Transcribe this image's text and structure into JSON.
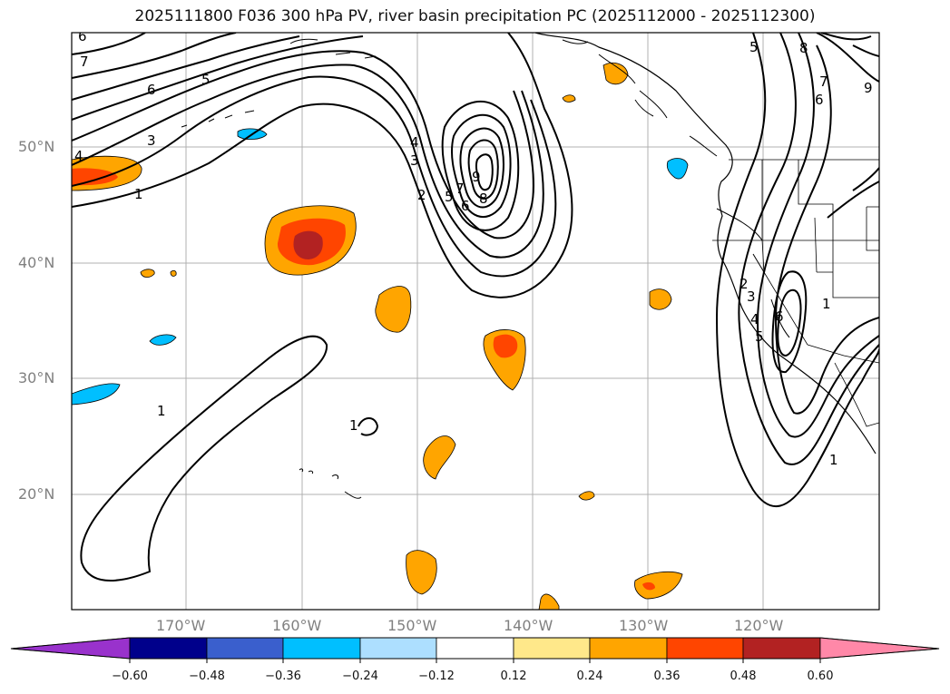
{
  "title": "2025111800 F036 300 hPa PV, river basin precipitation PC (2025112000 - 2025112300)",
  "axes": {
    "x_ticks": [
      "170°W",
      "160°W",
      "150°W",
      "140°W",
      "130°W",
      "120°W"
    ],
    "y_ticks": [
      "50°N",
      "40°N",
      "30°N",
      "20°N"
    ]
  },
  "colorbar": {
    "ticks": [
      "−0.60",
      "−0.48",
      "−0.36",
      "−0.24",
      "−0.12",
      "0.12",
      "0.24",
      "0.36",
      "0.48",
      "0.60"
    ],
    "colors": [
      "#9932CC",
      "#00008B",
      "#3A5FCD",
      "#00BFFF",
      "#ADDFFF",
      "#FFFFFF",
      "#FFE88A",
      "#FFA500",
      "#FF4500",
      "#B22222",
      "#FF88A8"
    ]
  },
  "contour_labels": [
    "6",
    "7",
    "6",
    "5",
    "4",
    "3",
    "1",
    "4",
    "3",
    "2",
    "5",
    "7",
    "6",
    "9",
    "8",
    "5",
    "8",
    "7",
    "6",
    "9",
    "2",
    "3",
    "4",
    "5",
    "6",
    "1",
    "1",
    "1",
    "1"
  ],
  "colors": {
    "pv_contour": "#000000",
    "grid": "#b0b0b0",
    "coast": "#000000"
  }
}
